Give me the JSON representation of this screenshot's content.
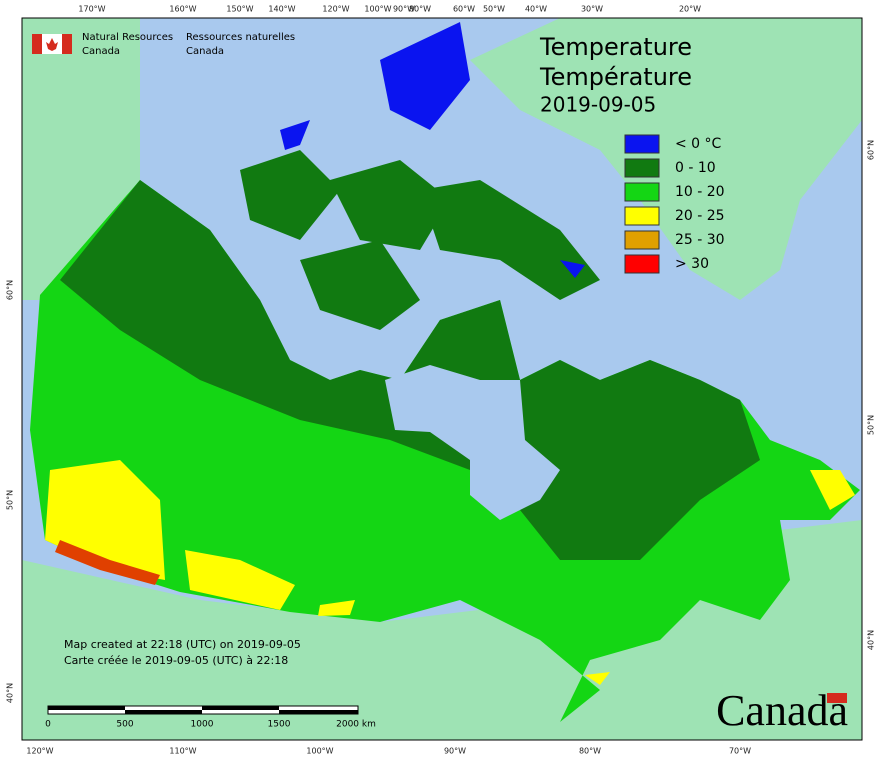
{
  "header": {
    "agency_en": [
      "Natural Resources",
      "Canada"
    ],
    "agency_fr": [
      "Ressources naturelles",
      "Canada"
    ]
  },
  "title": {
    "en": "Temperature",
    "fr": "Température",
    "date": "2019-09-05"
  },
  "legend": [
    {
      "label": "< 0 °C",
      "color": "#0a14f0"
    },
    {
      "label": "0 - 10",
      "color": "#117a11"
    },
    {
      "label": "10 - 20",
      "color": "#14d614"
    },
    {
      "label": "20 - 25",
      "color": "#ffff00"
    },
    {
      "label": "25 - 30",
      "color": "#e0a000"
    },
    {
      "label": "> 30",
      "color": "#ff0000"
    }
  ],
  "credits": [
    "Map created at 22:18 (UTC) on 2019-09-05",
    "Carte créée le 2019-09-05 (UTC) à 22:18"
  ],
  "scale_bar": [
    "0",
    "500",
    "1000",
    "1500",
    "2000  km"
  ],
  "graticule": {
    "top": [
      "170°W",
      "160°W",
      "150°W",
      "140°W",
      "120°W",
      "100°W",
      "90°W",
      "80°W",
      "60°W",
      "50°W",
      "40°W",
      "30°W",
      "20°W"
    ],
    "bottom": [
      "120°W",
      "110°W",
      "100°W",
      "90°W",
      "80°W",
      "70°W"
    ],
    "left": [
      "60°N",
      "50°N",
      "40°N"
    ],
    "right": [
      "60°N",
      "50°N",
      "40°N"
    ]
  },
  "wordmark": "Canada"
}
